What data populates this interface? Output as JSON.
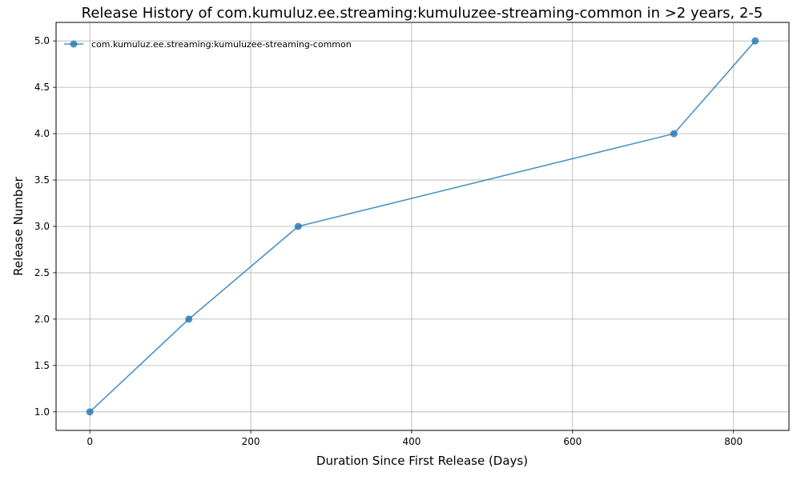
{
  "chart_data": {
    "type": "line",
    "title": "Release History of com.kumuluz.ee.streaming:kumuluzee-streaming-common in >2 years, 2-5",
    "xlabel": "Duration Since First Release (Days)",
    "ylabel": "Release Number",
    "xlim": [
      -42,
      869
    ],
    "ylim": [
      0.8,
      5.2
    ],
    "xticks": [
      0,
      200,
      400,
      600,
      800
    ],
    "yticks": [
      1.0,
      1.5,
      2.0,
      2.5,
      3.0,
      3.5,
      4.0,
      4.5,
      5.0
    ],
    "xtick_labels": [
      "0",
      "200",
      "400",
      "600",
      "800"
    ],
    "ytick_labels": [
      "1.0",
      "1.5",
      "2.0",
      "2.5",
      "3.0",
      "3.5",
      "4.0",
      "4.5",
      "5.0"
    ],
    "grid": true,
    "legend_position": "top-left",
    "series": [
      {
        "name": "com.kumuluz.ee.streaming:kumuluzee-streaming-common",
        "color": "#1f77b4",
        "marker": "circle",
        "x": [
          0,
          123,
          259,
          726,
          827
        ],
        "y": [
          1,
          2,
          3,
          4,
          5
        ]
      }
    ]
  }
}
